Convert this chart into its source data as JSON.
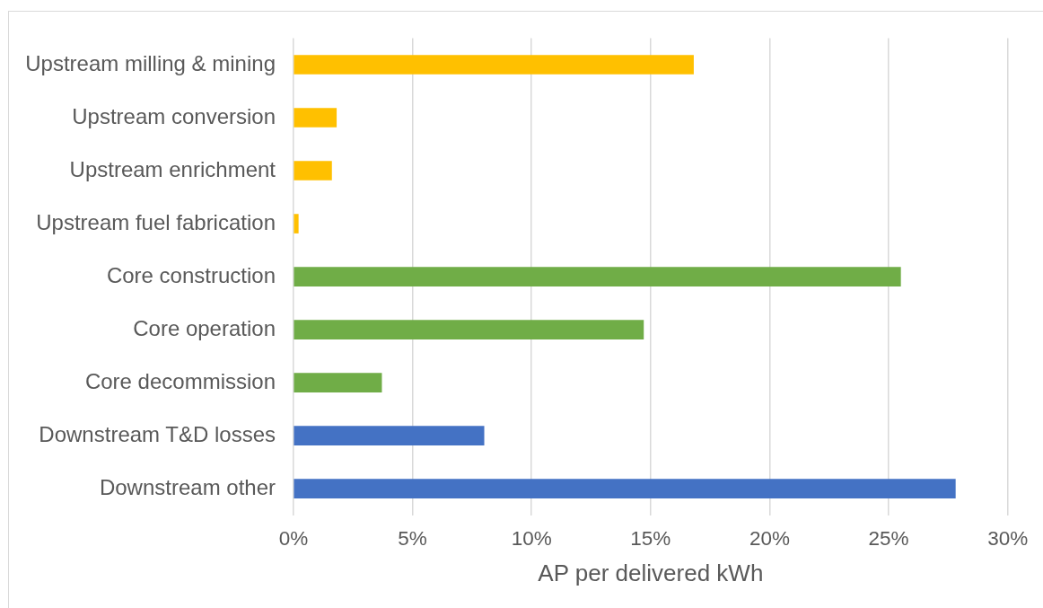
{
  "chart_data": {
    "type": "bar",
    "orientation": "horizontal",
    "categories": [
      "Upstream milling & mining",
      "Upstream conversion",
      "Upstream enrichment",
      "Upstream fuel fabrication",
      "Core construction",
      "Core operation",
      "Core decommission",
      "Downstream T&D losses",
      "Downstream other"
    ],
    "values": [
      16.8,
      1.8,
      1.6,
      0.2,
      25.5,
      14.7,
      3.7,
      8,
      27.8
    ],
    "colors": [
      "#ffc000",
      "#ffc000",
      "#ffc000",
      "#ffc000",
      "#70ad47",
      "#70ad47",
      "#70ad47",
      "#4472c4",
      "#4472c4"
    ],
    "xlabel": "AP per delivered kWh",
    "xlim": [
      0,
      30
    ],
    "xticks": [
      {
        "value": 0,
        "label": "0%"
      },
      {
        "value": 5,
        "label": "5%"
      },
      {
        "value": 10,
        "label": "10%"
      },
      {
        "value": 15,
        "label": "15%"
      },
      {
        "value": 20,
        "label": "20%"
      },
      {
        "value": 25,
        "label": "25%"
      },
      {
        "value": 30,
        "label": "30%"
      }
    ],
    "grid": "x",
    "legend": false
  }
}
